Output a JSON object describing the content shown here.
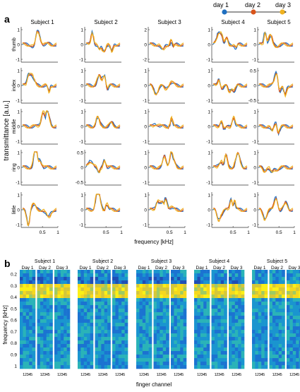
{
  "legend": {
    "days": [
      {
        "label": "day 1",
        "color": "#1f6fc0"
      },
      {
        "label": "day 2",
        "color": "#d9541a"
      },
      {
        "label": "day 3",
        "color": "#efb21f"
      }
    ]
  },
  "panel_a": {
    "letter": "a",
    "ylabel": "transmittance [a.u.]",
    "xlabel": "frequency [kHz]",
    "subjects": [
      "Subject 1",
      "Subject 2",
      "Subject 3",
      "Subject 4",
      "Subject 5"
    ],
    "fingers": [
      "thumb",
      "index",
      "middle",
      "ring",
      "little"
    ],
    "x_ticks": [
      "0.5",
      "1"
    ],
    "y_ticks": [
      [
        [
          "1",
          "0",
          "-1"
        ],
        [
          "1",
          "0",
          "-1"
        ],
        [
          "2",
          "0",
          "-2"
        ],
        [
          "1",
          "0",
          "-1"
        ],
        [
          "1",
          "0",
          "-1"
        ]
      ],
      [
        [
          "1",
          "0",
          "-1"
        ],
        [
          "1",
          "0",
          "-1"
        ],
        [
          "1",
          "0",
          "-1"
        ],
        [
          "1",
          "0",
          "-1"
        ],
        [
          "0.5",
          "0",
          "-0.5"
        ]
      ],
      [
        [
          "1",
          "0",
          "-1"
        ],
        [
          "1",
          "0",
          "-1"
        ],
        [
          "1",
          "0",
          "-1"
        ],
        [
          "1",
          "0",
          "-1"
        ],
        [
          "1",
          "0",
          "-1"
        ]
      ],
      [
        [
          "1",
          "0",
          "-1"
        ],
        [
          "0.5",
          "0",
          "-0.5"
        ],
        [
          "1",
          "0",
          "-1"
        ],
        [
          "1",
          "0",
          "-1"
        ],
        [
          "1",
          "0",
          "-1"
        ]
      ],
      [
        [
          "1",
          "0",
          "-1"
        ],
        [
          "1",
          "0",
          "-1"
        ],
        [
          "1",
          "0",
          "-1"
        ],
        [
          "1",
          "0",
          "-1"
        ],
        [
          "1",
          "0",
          "-1"
        ]
      ]
    ]
  },
  "panel_b": {
    "letter": "b",
    "ylabel": "frequency [kHz]",
    "xlabel": "finger channel",
    "subjects": [
      "Subject 1",
      "Subject 2",
      "Subject 3",
      "Subject 4",
      "Subject 5"
    ],
    "days": [
      "Day 1",
      "Day 2",
      "Day 3"
    ],
    "y_ticks": [
      "0.2",
      "0.3",
      "0.4",
      "0.5",
      "0.6",
      "0.7",
      "0.8",
      "0.9",
      "1"
    ],
    "channel_ticks": "12345"
  }
}
